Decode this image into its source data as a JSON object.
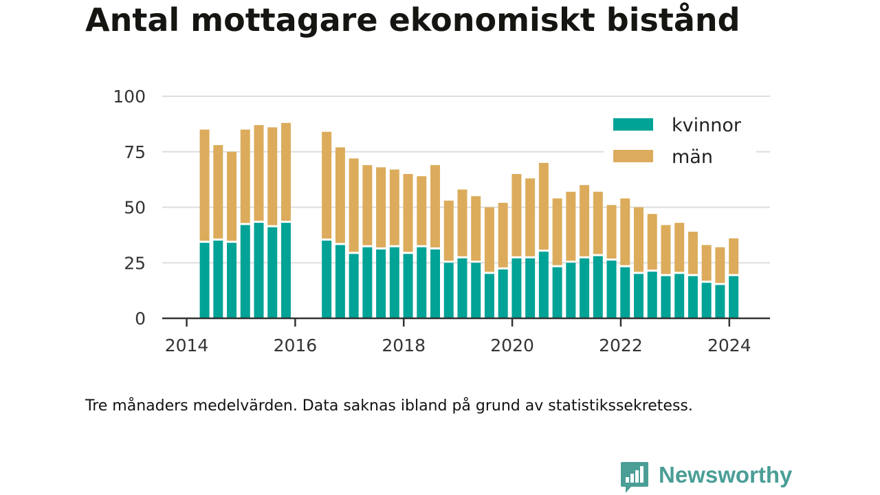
{
  "colors": {
    "kvinnor": "#00a396",
    "man": "#dcac5c",
    "grid": "#dddddd",
    "axis": "#333333",
    "brand": "#4a9e96"
  },
  "footer": {
    "note": "Tre månaders medelvärden. Data saknas ibland på grund av statistikssekretess.",
    "brand_name": "Newsworthy",
    "brand_icon": "bar-chart-speech-bubble-icon"
  },
  "chart_data": {
    "type": "bar",
    "stacked": true,
    "title": "Antal mottagare ekonomiskt bistånd",
    "xlabel": "",
    "ylabel": "",
    "ylim": [
      0,
      100
    ],
    "y_ticks": [
      0,
      25,
      50,
      75,
      100
    ],
    "x_ticks": [
      {
        "x": 2014,
        "label": "2014"
      },
      {
        "x": 2016,
        "label": "2016"
      },
      {
        "x": 2018,
        "label": "2018"
      },
      {
        "x": 2020,
        "label": "2020"
      },
      {
        "x": 2022,
        "label": "2022"
      },
      {
        "x": 2024,
        "label": "2024"
      }
    ],
    "x_range": [
      2013.55,
      2024.75
    ],
    "grid": "horizontal",
    "legend_position": "top-right",
    "x": [
      2014.33,
      2014.58,
      2014.83,
      2015.08,
      2015.33,
      2015.58,
      2015.83,
      2016.58,
      2016.83,
      2017.08,
      2017.33,
      2017.58,
      2017.83,
      2018.08,
      2018.33,
      2018.58,
      2018.83,
      2019.08,
      2019.33,
      2019.58,
      2019.83,
      2020.08,
      2020.33,
      2020.58,
      2020.83,
      2021.08,
      2021.33,
      2021.58,
      2021.83,
      2022.08,
      2022.33,
      2022.58,
      2022.83,
      2023.08,
      2023.33,
      2023.58,
      2023.83,
      2024.08
    ],
    "series": [
      {
        "name": "kvinnor",
        "values": [
          34,
          35,
          34,
          42,
          43,
          41,
          43,
          35,
          33,
          29,
          32,
          31,
          32,
          29,
          32,
          31,
          25,
          27,
          25,
          20,
          22,
          27,
          27,
          30,
          23,
          25,
          27,
          28,
          26,
          23,
          20,
          21,
          19,
          20,
          19,
          16,
          15,
          19
        ]
      },
      {
        "name": "män",
        "values": [
          51,
          43,
          41,
          43,
          44,
          45,
          45,
          49,
          44,
          43,
          37,
          37,
          35,
          36,
          32,
          38,
          28,
          31,
          30,
          30,
          30,
          38,
          36,
          40,
          31,
          32,
          33,
          29,
          25,
          31,
          30,
          26,
          23,
          23,
          20,
          17,
          17,
          17
        ]
      }
    ]
  }
}
